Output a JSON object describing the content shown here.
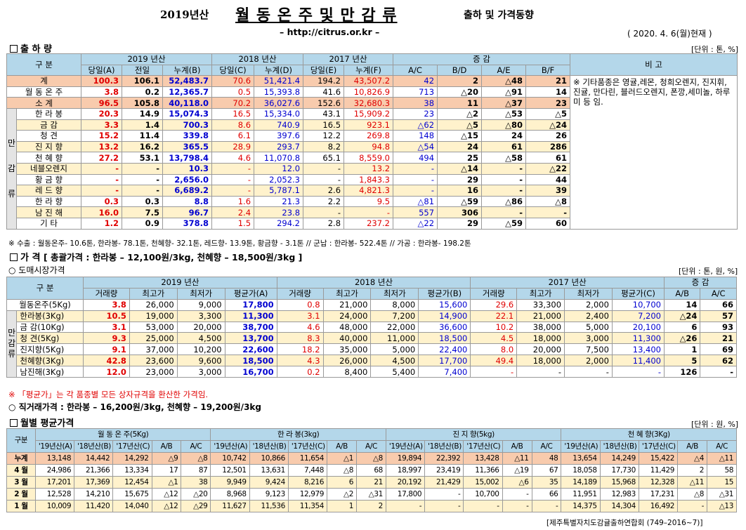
{
  "header": {
    "title_prefix": "2019년산",
    "title_main": "월 동 온 주 및 만 감 류",
    "title_suffix": "출하 및 가격동향",
    "url": "– http://citrus.or.kr –",
    "date": "( 2020. 4. 6(월)현재 )"
  },
  "shipment": {
    "section": "출 하 량",
    "unit": "[단위 : 톤, %]",
    "h_gubun": "구 분",
    "h_y2019": "2019 년산",
    "h_y2018": "2018 년산",
    "h_y2017": "2017 년산",
    "h_change": "증 감",
    "h_note": "비 고",
    "sub": [
      "당일(A)",
      "전일",
      "누계(B)",
      "당일(C)",
      "누계(D)",
      "당일(E)",
      "누계(F)",
      "A/C",
      "B/D",
      "A/E",
      "B/F"
    ],
    "side_label": [
      "만",
      "감",
      "류"
    ],
    "rows": [
      [
        "계",
        "100.3",
        "106.1",
        "52,483.7",
        "70.6",
        "51,421.4",
        "194.2",
        "43,507.2",
        "42",
        "2",
        "△48",
        "21"
      ],
      [
        "월 동 온 주",
        "3.8",
        "0.2",
        "12,365.7",
        "0.5",
        "15,393.8",
        "41.6",
        "10,826.9",
        "713",
        "△20",
        "△91",
        "14"
      ],
      [
        "소 계",
        "96.5",
        "105.8",
        "40,118.0",
        "70.2",
        "36,027.6",
        "152.6",
        "32,680.3",
        "38",
        "11",
        "△37",
        "23"
      ],
      [
        "한 라 봉",
        "20.3",
        "14.9",
        "15,074.3",
        "16.5",
        "15,334.0",
        "43.1",
        "15,909.2",
        "23",
        "△2",
        "△53",
        "△5"
      ],
      [
        "금 감",
        "3.3",
        "1.4",
        "700.3",
        "8.6",
        "740.9",
        "16.5",
        "923.1",
        "△62",
        "△5",
        "△80",
        "△24"
      ],
      [
        "청 견",
        "15.2",
        "11.4",
        "339.8",
        "6.1",
        "397.6",
        "12.2",
        "269.8",
        "148",
        "△15",
        "24",
        "26"
      ],
      [
        "진 지 향",
        "13.2",
        "16.2",
        "365.5",
        "28.9",
        "293.7",
        "8.2",
        "94.8",
        "△54",
        "24",
        "61",
        "286"
      ],
      [
        "천 혜 향",
        "27.2",
        "53.1",
        "13,798.4",
        "4.6",
        "11,070.8",
        "65.1",
        "8,559.0",
        "494",
        "25",
        "△58",
        "61"
      ],
      [
        "네블오렌지",
        "-",
        "-",
        "10.3",
        "-",
        "12.0",
        "-",
        "13.2",
        "-",
        "△14",
        "-",
        "△22"
      ],
      [
        "황 금 향",
        "-",
        "-",
        "2,656.0",
        "-",
        "2,052.3",
        "-",
        "1,843.3",
        "-",
        "29",
        "-",
        "44"
      ],
      [
        "레 드 향",
        "-",
        "-",
        "6,689.2",
        "-",
        "5,787.1",
        "2.6",
        "4,821.3",
        "-",
        "16",
        "-",
        "39"
      ],
      [
        "한 라 향",
        "0.3",
        "0.3",
        "8.8",
        "1.6",
        "21.3",
        "2.2",
        "9.5",
        "△81",
        "△59",
        "△86",
        "△8"
      ],
      [
        "남 진 해",
        "16.0",
        "7.5",
        "96.7",
        "2.4",
        "23.8",
        "-",
        "-",
        "557",
        "306",
        "-",
        "-"
      ],
      [
        "기 타",
        "1.2",
        "0.9",
        "378.8",
        "1.5",
        "294.2",
        "2.8",
        "237.2",
        "△22",
        "29",
        "△59",
        "60"
      ]
    ],
    "note": "※ 기타품종은 영귤,레몬, 청희오렌지, 진지휘, 진귤, 만다린, 블러드오렌지, 폰깡,세미놀, 하루미 등 임.",
    "footnote": "※ 수출 : 월동온주- 10.6톤, 한라봉- 78.1톤, 천혜향- 32.1톤, 레드향- 13.9톤, 황금향 - 3.1톤  // 군납 : 한라봉- 522.4톤 // 가공 : 한라봉- 198.2톤"
  },
  "price": {
    "section": "가 격",
    "summary": "[ 총괄가격 : 한라봉 – 12,100원/3kg, 천혜향 – 18,500원/3kg ]",
    "wholesale_title": "○ 도매시장가격",
    "unit": "[단위 : 톤, 원, %]",
    "h_gubun": "구 분",
    "h_y2019": "2019 년산",
    "h_y2018": "2018 년산",
    "h_y2017": "2017 년산",
    "h_change": "증 감",
    "sub": [
      "거래량",
      "최고가",
      "최저가",
      "평균가(A)",
      "거래량",
      "최고가",
      "최저가",
      "평균가(B)",
      "거래량",
      "최고가",
      "최저가",
      "평균가(C)",
      "A/B",
      "A/C"
    ],
    "side_label": [
      "만",
      "감",
      "류"
    ],
    "rows": [
      [
        "월동온주(5Kg)",
        "3.8",
        "26,000",
        "9,000",
        "17,800",
        "0.8",
        "21,000",
        "8,000",
        "15,600",
        "29.6",
        "33,300",
        "2,000",
        "10,700",
        "14",
        "66"
      ],
      [
        "한라봉(3Kg)",
        "10.5",
        "19,000",
        "3,300",
        "11,300",
        "3.1",
        "24,000",
        "7,200",
        "14,900",
        "22.1",
        "21,000",
        "2,400",
        "7,200",
        "△24",
        "57"
      ],
      [
        "금 감(10Kg)",
        "3.1",
        "53,000",
        "20,000",
        "38,700",
        "4.6",
        "48,000",
        "22,000",
        "36,600",
        "10.2",
        "38,000",
        "5,000",
        "20,100",
        "6",
        "93"
      ],
      [
        "청 견(5Kg)",
        "9.3",
        "25,000",
        "4,500",
        "13,700",
        "8.3",
        "40,000",
        "11,000",
        "18,500",
        "4.5",
        "18,000",
        "3,000",
        "11,300",
        "△26",
        "21"
      ],
      [
        "진지향(5Kg)",
        "9.1",
        "37,000",
        "10,200",
        "22,600",
        "18.2",
        "35,000",
        "5,000",
        "22,400",
        "8.0",
        "20,000",
        "7,500",
        "13,400",
        "1",
        "69"
      ],
      [
        "천혜향(3Kg)",
        "42.8",
        "23,600",
        "9,600",
        "18,500",
        "4.3",
        "26,000",
        "4,500",
        "17,700",
        "49.4",
        "18,000",
        "2,000",
        "11,400",
        "5",
        "62"
      ],
      [
        "남진해(3Kg)",
        "12.0",
        "23,000",
        "3,000",
        "16,700",
        "0.2",
        "8,400",
        "5,400",
        "7,400",
        "-",
        "-",
        "-",
        "-",
        "126",
        "-"
      ]
    ],
    "avg_note": "※ 「평균가」는 각 품종별 모든 상자규격을 환산한 가격임.",
    "direct": "○ 직거래가격 : 한라봉 – 16,200원/3kg,  천혜향 – 19,200원/3kg"
  },
  "monthly": {
    "section": "월별 평균가격",
    "unit": "[단위 : 원, %]",
    "h_gubun": "구분",
    "groups": [
      "월 동 온 주(5Kg)",
      "한 라 봉(3kg)",
      "진 지 향(5kg)",
      "천 혜 향(3Kg)"
    ],
    "sub": [
      "'19년산(A)",
      "'18년산(B)",
      "'17년산(C)",
      "A/B",
      "A/C"
    ],
    "rows": [
      [
        "누계",
        "13,148",
        "14,442",
        "14,292",
        "△9",
        "△8",
        "10,742",
        "10,866",
        "11,654",
        "△1",
        "△8",
        "19,894",
        "22,392",
        "13,428",
        "△11",
        "48",
        "13,654",
        "14,249",
        "15,422",
        "△4",
        "△11"
      ],
      [
        "4 월",
        "24,986",
        "21,366",
        "13,334",
        "17",
        "87",
        "12,501",
        "13,631",
        "7,448",
        "△8",
        "68",
        "18,997",
        "23,419",
        "11,366",
        "△19",
        "67",
        "18,058",
        "17,730",
        "11,429",
        "2",
        "58"
      ],
      [
        "3 월",
        "17,201",
        "17,369",
        "12,454",
        "△1",
        "38",
        "9,949",
        "9,424",
        "8,216",
        "6",
        "21",
        "20,192",
        "21,429",
        "15,002",
        "△6",
        "35",
        "14,189",
        "15,968",
        "12,328",
        "△11",
        "15"
      ],
      [
        "2 월",
        "12,528",
        "14,210",
        "15,675",
        "△12",
        "△20",
        "8,968",
        "9,123",
        "12,979",
        "△2",
        "△31",
        "17,800",
        "-",
        "10,700",
        "-",
        "66",
        "11,951",
        "12,983",
        "17,231",
        "△8",
        "△31"
      ],
      [
        "1 월",
        "10,009",
        "11,420",
        "14,040",
        "△12",
        "△29",
        "11,627",
        "11,536",
        "11,354",
        "1",
        "2",
        "-",
        "-",
        "-",
        "-",
        "-",
        "14,375",
        "14,304",
        "16,492",
        "-",
        "△13"
      ]
    ]
  },
  "footer": "[제주특별자치도감귤출하연합회 (749–2016~7)]",
  "colors": {
    "header_blue": "#b4d7ea",
    "total_pink": "#f8cbad",
    "yellow": "#fff2cc",
    "red": "#e00000",
    "blue": "#0000d0"
  }
}
